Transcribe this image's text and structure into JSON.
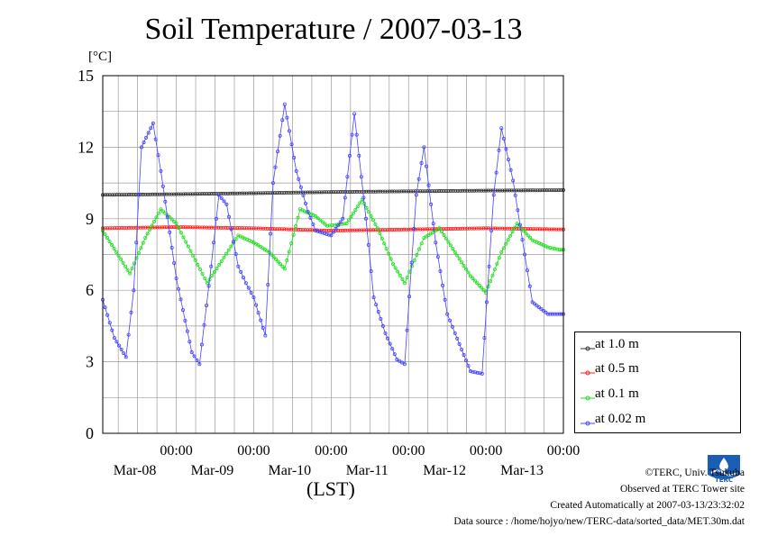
{
  "page": {
    "title": "Soil Temperature / 2007-03-13",
    "unit_label": "[°C]",
    "x_axis_label": "(LST)",
    "credits": {
      "copyright": "©TERC, Univ. Tsukuba",
      "observed": "Observed at TERC Tower site",
      "created": "Created Automatically at 2007-03-13/23:32:02",
      "source": "Data source : /home/hojyo/new/TERC-data/sorted_data/MET.30m.dat"
    },
    "logo_text": "TERC"
  },
  "chart_data": {
    "type": "line",
    "title": "Soil Temperature / 2007-03-13",
    "ylabel": "[°C]",
    "xlabel": "(LST)",
    "ylim": [
      0,
      15
    ],
    "yticks": [
      0,
      3,
      6,
      9,
      12,
      15
    ],
    "xlim": [
      -0.95,
      5.0
    ],
    "x_units": "days from Mar-08 00:00 (LST)",
    "x_tick_labels": [
      {
        "time": "00:00",
        "date": "Mar-08"
      },
      {
        "time": "00:00",
        "date": "Mar-09"
      },
      {
        "time": "00:00",
        "date": "Mar-10"
      },
      {
        "time": "00:00",
        "date": "Mar-11"
      },
      {
        "time": "00:00",
        "date": "Mar-12"
      },
      {
        "time": "00:00",
        "date": "Mar-13"
      }
    ],
    "grid": true,
    "legend_position": "right",
    "series": [
      {
        "name": "at 1.0 m",
        "color": "#333333",
        "x": [
          -0.95,
          0.0,
          1.0,
          2.0,
          3.0,
          4.0,
          5.0
        ],
        "y": [
          10.0,
          10.03,
          10.07,
          10.12,
          10.15,
          10.18,
          10.2
        ]
      },
      {
        "name": "at 0.5 m",
        "color": "#ff2020",
        "x": [
          -0.95,
          0.0,
          1.0,
          2.0,
          3.0,
          4.0,
          5.0
        ],
        "y": [
          8.6,
          8.65,
          8.6,
          8.5,
          8.55,
          8.6,
          8.55
        ]
      },
      {
        "name": "at 0.1 m",
        "color": "#22dd22",
        "x": [
          -0.95,
          -0.6,
          -0.4,
          -0.2,
          0.0,
          0.4,
          0.8,
          1.0,
          1.2,
          1.4,
          1.6,
          1.8,
          1.95,
          2.2,
          2.4,
          2.6,
          2.8,
          2.95,
          3.2,
          3.4,
          3.6,
          3.8,
          4.0,
          4.2,
          4.4,
          4.6,
          4.8,
          4.95,
          5.0
        ],
        "y": [
          8.5,
          6.7,
          8.2,
          9.4,
          8.8,
          6.3,
          8.3,
          8.0,
          7.6,
          6.9,
          9.4,
          9.1,
          8.7,
          8.8,
          9.8,
          8.6,
          7.1,
          6.3,
          8.2,
          8.6,
          7.6,
          6.6,
          5.9,
          7.6,
          8.8,
          8.1,
          7.8,
          7.7,
          7.7
        ]
      },
      {
        "name": "at 0.02 m",
        "color": "#4444ff",
        "x": [
          -0.95,
          -0.8,
          -0.65,
          -0.55,
          -0.45,
          -0.3,
          -0.2,
          0.0,
          0.2,
          0.3,
          0.45,
          0.55,
          0.65,
          0.8,
          0.9,
          1.0,
          1.15,
          1.25,
          1.4,
          1.55,
          1.7,
          1.8,
          2.0,
          2.15,
          2.3,
          2.45,
          2.55,
          2.7,
          2.85,
          2.95,
          3.1,
          3.2,
          3.35,
          3.5,
          3.6,
          3.8,
          3.95,
          4.1,
          4.2,
          4.35,
          4.5,
          4.6,
          4.8,
          4.95,
          5.0
        ],
        "y": [
          5.6,
          4.0,
          3.2,
          6.0,
          12.0,
          13.0,
          11.0,
          6.5,
          3.4,
          2.9,
          7.0,
          10.0,
          9.6,
          7.0,
          6.3,
          5.7,
          4.1,
          10.5,
          13.8,
          11.0,
          9.3,
          8.5,
          8.3,
          9.0,
          13.4,
          9.0,
          5.7,
          4.2,
          3.1,
          2.9,
          10.0,
          12.0,
          8.0,
          5.0,
          4.2,
          2.6,
          2.5,
          10.0,
          12.8,
          10.6,
          7.5,
          5.5,
          5.0,
          5.0,
          5.0
        ]
      }
    ]
  }
}
